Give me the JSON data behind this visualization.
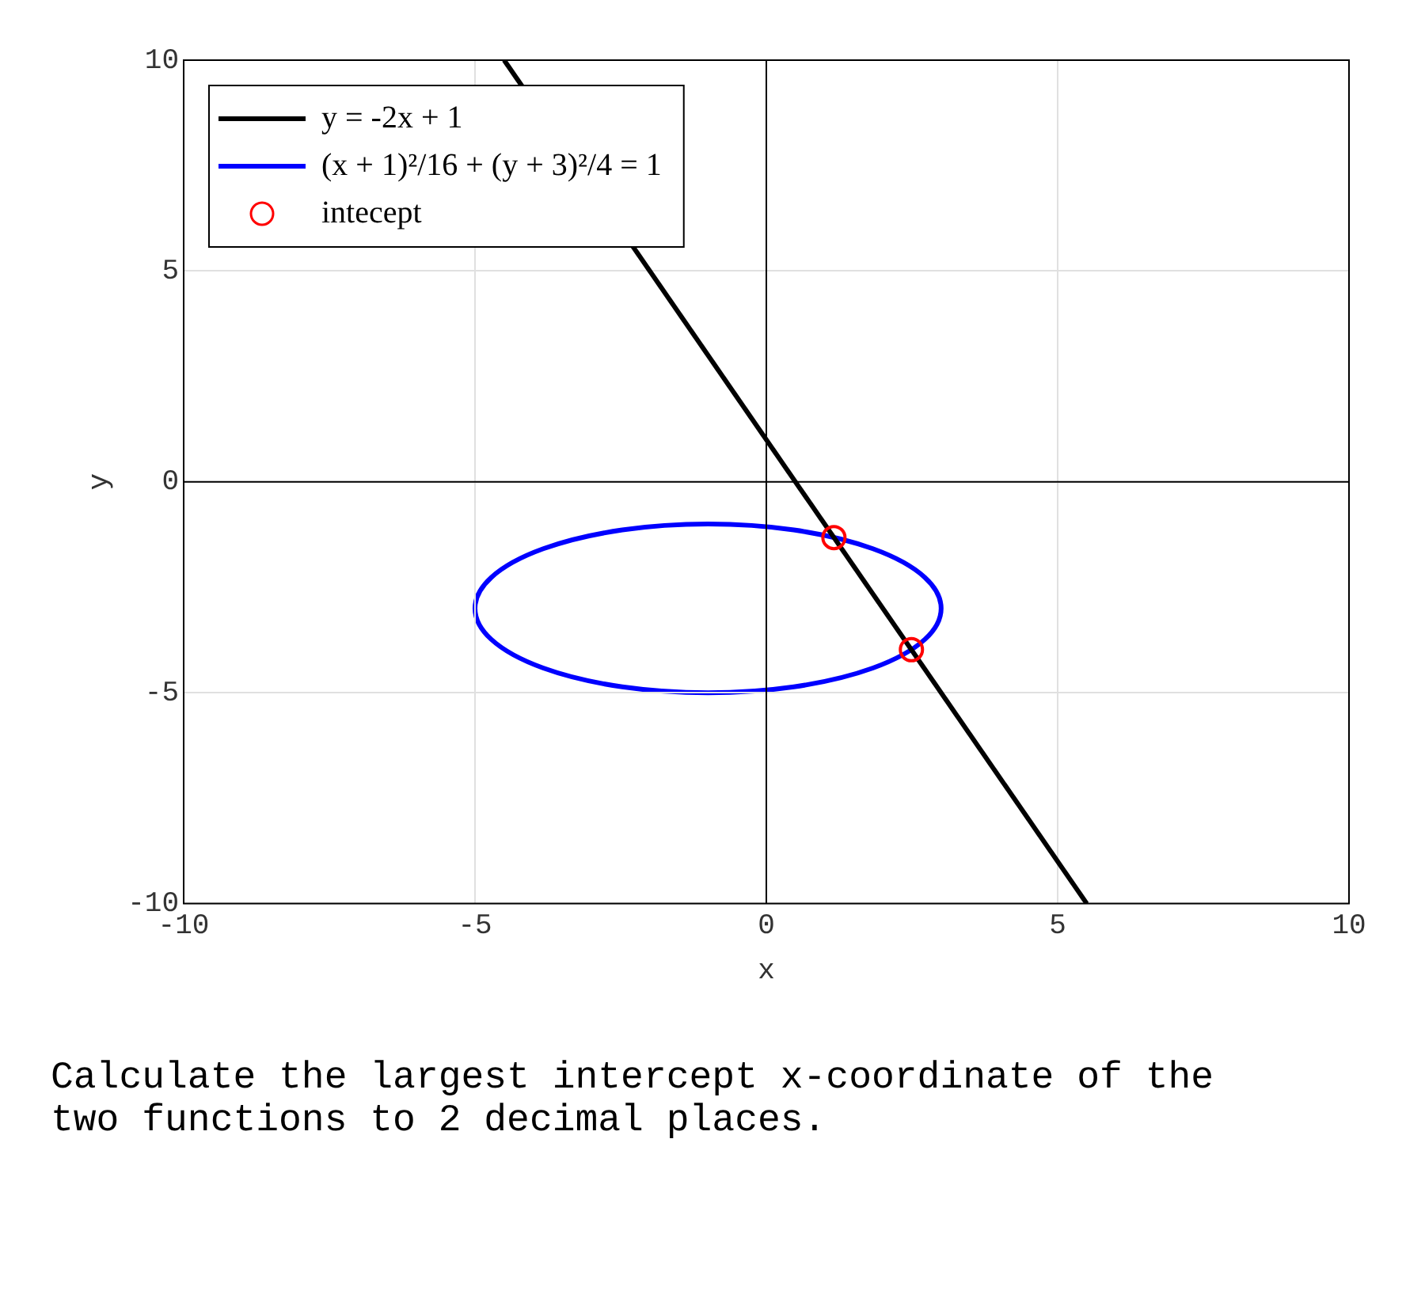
{
  "chart_data": {
    "type": "line",
    "xlabel": "x",
    "ylabel": "y",
    "xlim": [
      -10,
      10
    ],
    "xticks": [
      -10,
      -5,
      0,
      5,
      10
    ],
    "ylim": [
      -10,
      10
    ],
    "yticks": [
      -10,
      -5,
      0,
      5,
      10
    ],
    "grid": true,
    "legend": "top left",
    "series": [
      {
        "name": "y = -2x + 1",
        "color": "#000000",
        "marker": "none",
        "x": [
          -4.5,
          5.5
        ],
        "values": [
          10,
          -10
        ]
      },
      {
        "name": "(x + 1)²/16 + (y + 3)²/4 = 1",
        "type": "line",
        "color": "#0000ff",
        "marker": "none"
      },
      {
        "name": "intecept",
        "type": "scatter",
        "color": "#ff0000",
        "marker": "circle",
        "x": [
          1.16,
          2.49
        ],
        "values": [
          -1.32,
          -3.98
        ]
      }
    ],
    "annotations": [
      "Calculate the largest intercept x-coordinate of the two functions to 2 decimal places."
    ]
  }
}
